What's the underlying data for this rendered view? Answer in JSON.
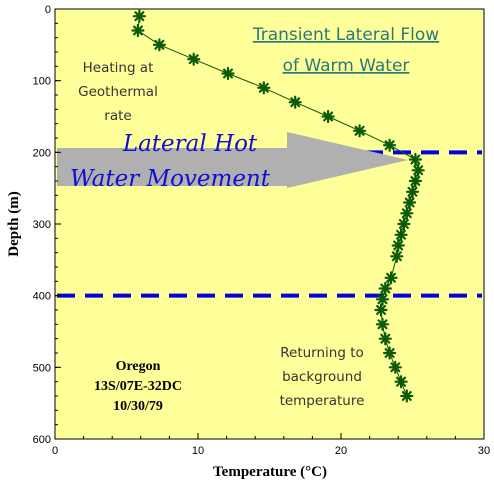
{
  "chart_data": {
    "type": "scatter",
    "title": "Transient Lateral Flow of Warm Water",
    "title_lines": [
      "Transient Lateral Flow",
      "of Warm Water"
    ],
    "xlabel": "Temperature (°C)",
    "ylabel": "Depth (m)",
    "xlim": [
      0,
      30
    ],
    "ylim": [
      600,
      0
    ],
    "y_inverted": true,
    "x_ticks": [
      "0",
      "10",
      "20",
      "30"
    ],
    "y_ticks": [
      "0",
      "100",
      "200",
      "300",
      "400",
      "500",
      "600"
    ],
    "grid": false,
    "marker": "asterisk",
    "colors": {
      "background": "#ffff99",
      "points": "#0a5a0a",
      "lines": "#0000e0",
      "arrow": "#b0b0b0",
      "title": "#2a7a7a"
    },
    "x": [
      5.9,
      5.8,
      7.3,
      9.7,
      12.1,
      14.6,
      16.8,
      19.1,
      21.3,
      23.4,
      25.2,
      25.4,
      25.2,
      25.0,
      24.8,
      24.6,
      24.4,
      24.2,
      24.0,
      23.9,
      23.5,
      23.1,
      22.9,
      22.8,
      22.9,
      23.1,
      23.4,
      23.8,
      24.2,
      24.6
    ],
    "y": [
      10,
      30,
      50,
      70,
      90,
      110,
      130,
      150,
      170,
      190,
      210,
      225,
      240,
      255,
      270,
      285,
      300,
      315,
      330,
      345,
      375,
      390,
      405,
      420,
      440,
      460,
      480,
      500,
      520,
      540
    ],
    "reference_lines": [
      {
        "depth": 200,
        "style": "dashed"
      },
      {
        "depth": 400,
        "style": "dashed"
      }
    ],
    "annotations": {
      "heating": [
        "Heating at",
        "Geothermal",
        "rate"
      ],
      "lateral": [
        "Lateral Hot",
        "Water Movement"
      ],
      "returning": [
        "Returning to",
        "background",
        "temperature"
      ],
      "site": [
        "Oregon",
        "13S/07E-32DC",
        "10/30/79"
      ]
    }
  }
}
